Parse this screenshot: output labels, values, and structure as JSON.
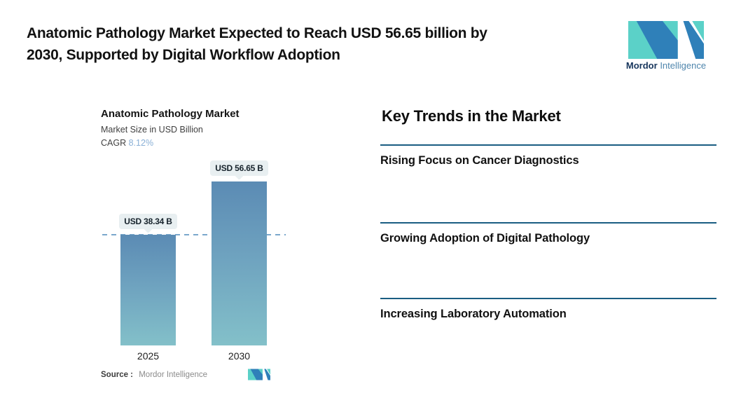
{
  "header": {
    "title_lines": [
      "Anatomic Pathology Market Expected to Reach USD 56.65 billion by",
      "2030, Supported by Digital Workflow Adoption"
    ],
    "brand": {
      "name_bold": "Mordor",
      "name_light": "Intelligence"
    }
  },
  "chart": {
    "title": "Anatomic Pathology Market",
    "subtitle": "Market Size in USD Billion",
    "cagr_label": "CAGR",
    "cagr_value": "8.12%",
    "source_label": "Source :",
    "source_value": "Mordor Intelligence"
  },
  "chart_data": {
    "type": "bar",
    "categories": [
      "2025",
      "2030"
    ],
    "values": [
      38.34,
      56.65
    ],
    "value_labels": [
      "USD 38.34 B",
      "USD 56.65 B"
    ],
    "title": "Anatomic Pathology Market",
    "subtitle": "Market Size in USD Billion",
    "cagr": "8.12%",
    "unit": "USD Billion",
    "xlabel": "",
    "ylabel": "Market Size in USD Billion",
    "ylim": [
      0,
      56.65
    ],
    "grid": false,
    "reference_line": {
      "value": 38.34,
      "style": "dashed",
      "color": "#7aa8cc"
    },
    "source": "Mordor Intelligence",
    "bar_gradient": [
      "#5b8bb4",
      "#83c0c9"
    ]
  },
  "trends": {
    "heading": "Key Trends in the Market",
    "items": [
      "Rising Focus on Cancer Diagnostics",
      "Growing Adoption of Digital Pathology",
      "Increasing Laboratory Automation"
    ]
  },
  "colors": {
    "accent_dark_line": "#1a5d82",
    "cagr_value": "#8ab0d6",
    "dashed_line": "#7aa8cc",
    "callout_bg": "#e8eff1",
    "logo_teal": "#5bd1c8",
    "logo_blue": "#2f80b9",
    "brand_navy": "#16355c",
    "brand_steel": "#4f86ad"
  }
}
